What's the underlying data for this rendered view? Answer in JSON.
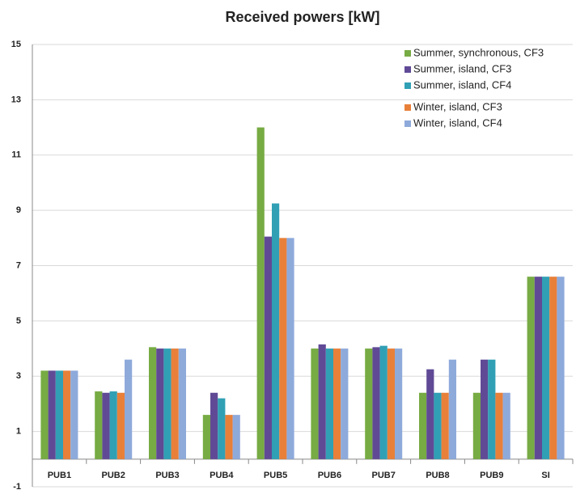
{
  "chart_data": {
    "type": "bar",
    "title": "Received powers [kW]",
    "categories": [
      "PUB1",
      "PUB2",
      "PUB3",
      "PUB4",
      "PUB5",
      "PUB6",
      "PUB7",
      "PUB8",
      "PUB9",
      "SI"
    ],
    "series": [
      {
        "name": "Summer, synchronous, CF3",
        "color": "#77ab43",
        "values": [
          3.2,
          2.45,
          4.05,
          1.6,
          12.0,
          4.0,
          4.0,
          2.4,
          2.4,
          6.6
        ]
      },
      {
        "name": "Summer, island, CF3",
        "color": "#604a96",
        "values": [
          3.2,
          2.4,
          4.0,
          2.4,
          8.05,
          4.15,
          4.05,
          3.25,
          3.6,
          6.6
        ]
      },
      {
        "name": "Summer, island, CF4",
        "color": "#31a0b5",
        "values": [
          3.2,
          2.45,
          4.0,
          2.2,
          9.25,
          4.0,
          4.1,
          2.4,
          3.6,
          6.6
        ]
      },
      {
        "name": "Winter, island, CF3",
        "color": "#e8803a",
        "values": [
          3.2,
          2.4,
          4.0,
          1.6,
          8.0,
          4.0,
          4.0,
          2.4,
          2.4,
          6.6
        ]
      },
      {
        "name": "Winter, island, CF4",
        "color": "#8eaadb",
        "values": [
          3.2,
          3.6,
          4.0,
          1.6,
          8.0,
          4.0,
          4.0,
          3.6,
          2.4,
          6.6
        ]
      }
    ],
    "ylim": [
      -1,
      15
    ],
    "yticks": [
      -1,
      1,
      3,
      5,
      7,
      9,
      11,
      13,
      15
    ],
    "grid": true,
    "legend": "top-right"
  }
}
